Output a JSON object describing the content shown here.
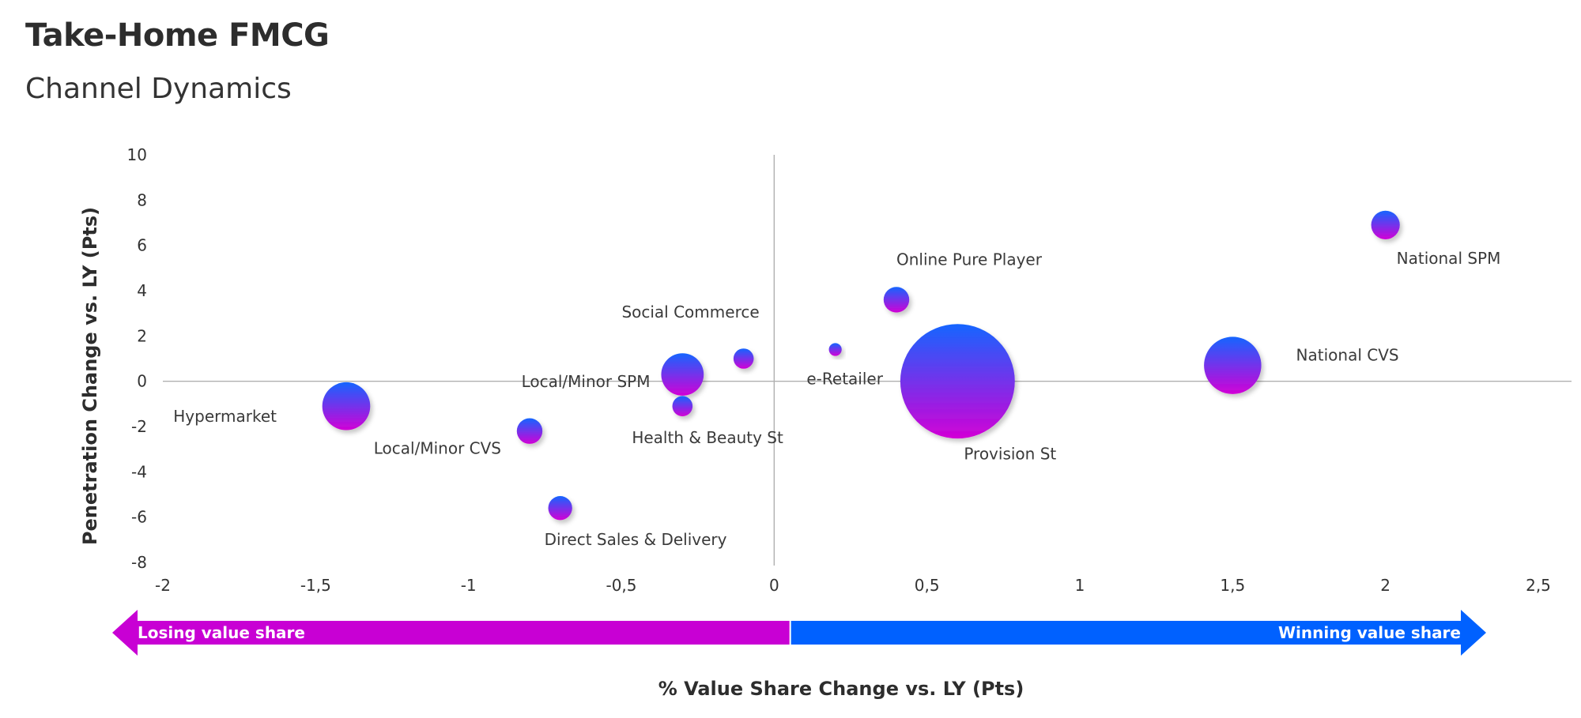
{
  "header": {
    "title": "Take-Home FMCG",
    "subtitle": "Channel Dynamics"
  },
  "colors": {
    "bubble_top": "#1565ff",
    "bubble_bottom": "#d200d6",
    "losing": "#c800d4",
    "winning": "#0061ff",
    "axis_line": "#b0b0b0"
  },
  "arrows": {
    "losing_label": "Losing value share",
    "winning_label": "Winning value share",
    "split_value": 0.05
  },
  "chart_data": {
    "type": "scatter",
    "subtype": "bubble",
    "xlabel": "% Value Share Change vs. LY (Pts)",
    "ylabel": "Penetration Change vs. LY (Pts)",
    "xlim": [
      -2,
      2.5
    ],
    "ylim": [
      -8,
      10
    ],
    "x_ticks": [
      "-2",
      "-1,5",
      "-1",
      "-0,5",
      "0",
      "0,5",
      "1",
      "1,5",
      "2",
      "2,5"
    ],
    "x_tick_values": [
      -2,
      -1.5,
      -1,
      -0.5,
      0,
      0.5,
      1,
      1.5,
      2,
      2.5
    ],
    "y_ticks": [
      "10",
      "8",
      "6",
      "4",
      "2",
      "0",
      "-2",
      "-4",
      "-6",
      "-8"
    ],
    "y_tick_values": [
      10,
      8,
      6,
      4,
      2,
      0,
      -2,
      -4,
      -6,
      -8
    ],
    "grid": false,
    "points": [
      {
        "label": "Hypermarket",
        "x": -1.4,
        "y": -1.1,
        "size": 14,
        "label_pos": "left"
      },
      {
        "label": "Local/Minor CVS",
        "x": -0.8,
        "y": -2.2,
        "size": 4,
        "label_pos": "below-left"
      },
      {
        "label": "Direct Sales & Delivery",
        "x": -0.7,
        "y": -5.6,
        "size": 3.5,
        "label_pos": "below-right"
      },
      {
        "label": "Local/Minor SPM",
        "x": -0.3,
        "y": 0.3,
        "size": 11,
        "label_pos": "left"
      },
      {
        "label": "Health & Beauty St",
        "x": -0.3,
        "y": -1.1,
        "size": 2.5,
        "label_pos": "below-right"
      },
      {
        "label": "Social Commerce",
        "x": -0.1,
        "y": 1.0,
        "size": 2.5,
        "label_pos": "above-left"
      },
      {
        "label": "e-Retailer",
        "x": 0.2,
        "y": 1.4,
        "size": 1,
        "label_pos": "below"
      },
      {
        "label": "Online Pure Player",
        "x": 0.4,
        "y": 3.6,
        "size": 4,
        "label_pos": "above-right"
      },
      {
        "label": "Provision St",
        "x": 0.6,
        "y": 0.0,
        "size": 80,
        "label_pos": "below-right"
      },
      {
        "label": "National  CVS",
        "x": 1.5,
        "y": 0.7,
        "size": 20,
        "label_pos": "right"
      },
      {
        "label": "National SPM",
        "x": 2.0,
        "y": 6.9,
        "size": 5,
        "label_pos": "below-right"
      }
    ]
  }
}
